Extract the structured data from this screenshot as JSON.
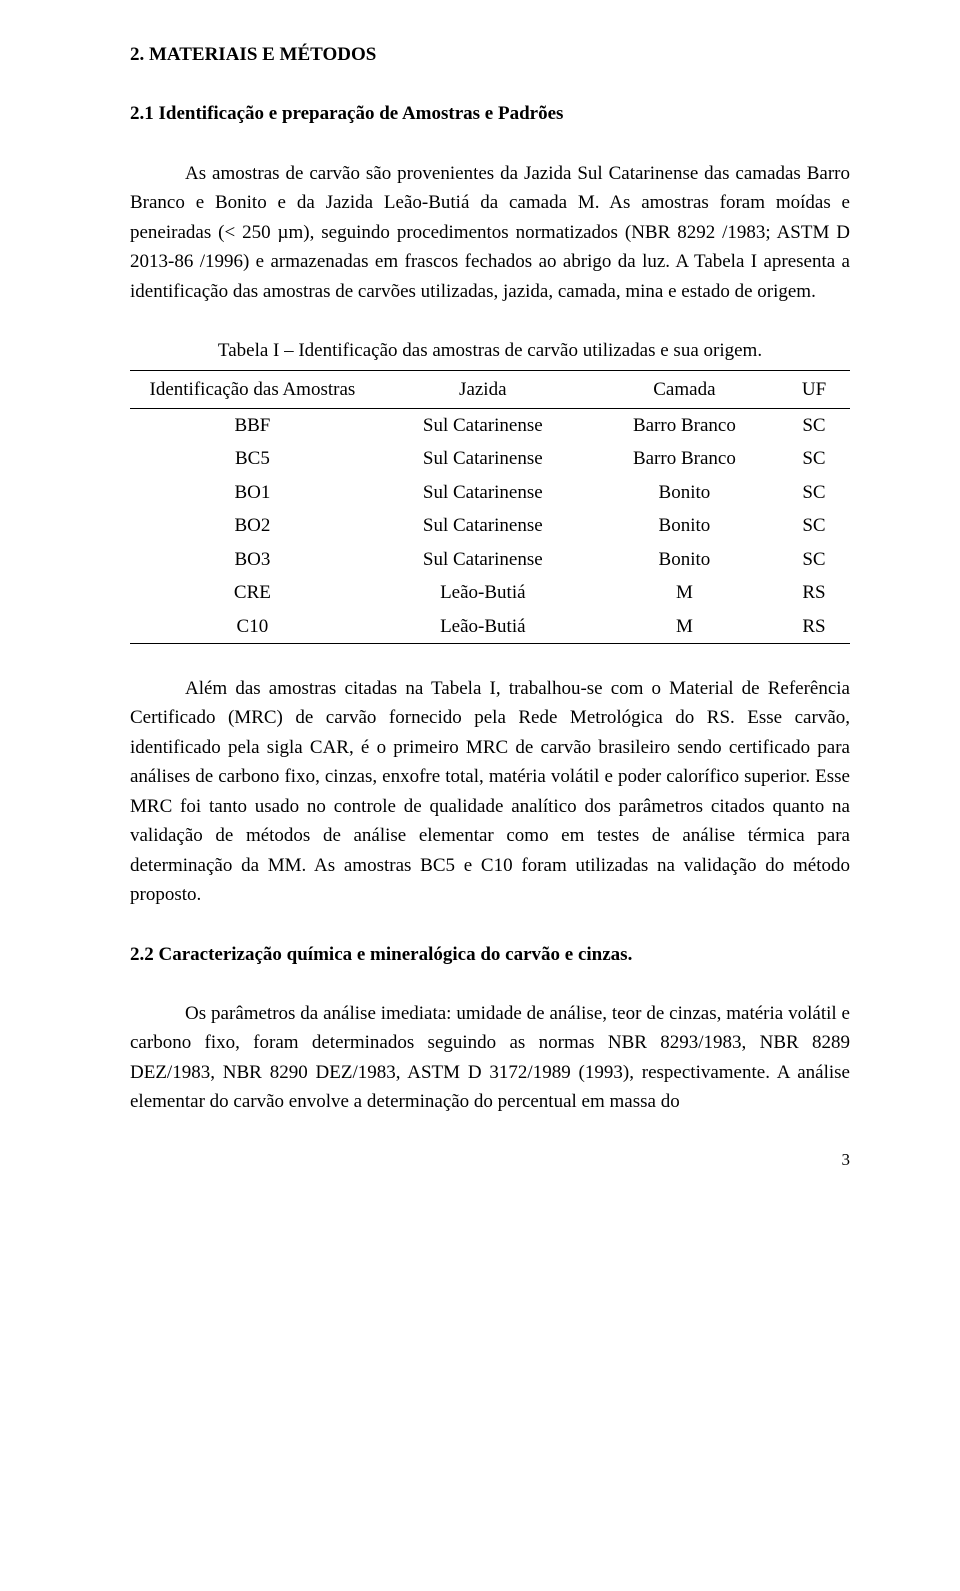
{
  "heading": "2. MATERIAIS E MÉTODOS",
  "sub1": "2.1 Identificação e preparação de Amostras e Padrões",
  "p1": "As amostras de carvão são provenientes da Jazida Sul Catarinense das camadas Barro Branco e Bonito e da Jazida Leão-Butiá da camada M. As amostras foram moídas e peneiradas (< 250 µm), seguindo procedimentos normatizados (NBR 8292 /1983; ASTM D 2013-86 /1996) e armazenadas em frascos fechados ao abrigo da luz. A Tabela I apresenta a identificação das amostras de carvões utilizadas, jazida, camada, mina e estado de origem.",
  "table_caption": "Tabela I – Identificação das amostras de carvão utilizadas e sua origem.",
  "table": {
    "columns": [
      "Identificação das Amostras",
      "Jazida",
      "Camada",
      "UF"
    ],
    "rows": [
      [
        "BBF",
        "Sul Catarinense",
        "Barro Branco",
        "SC"
      ],
      [
        "BC5",
        "Sul Catarinense",
        "Barro Branco",
        "SC"
      ],
      [
        "BO1",
        "Sul Catarinense",
        "Bonito",
        "SC"
      ],
      [
        "BO2",
        "Sul Catarinense",
        "Bonito",
        "SC"
      ],
      [
        "BO3",
        "Sul Catarinense",
        "Bonito",
        "SC"
      ],
      [
        "CRE",
        "Leão-Butiá",
        "M",
        "RS"
      ],
      [
        "C10",
        "Leão-Butiá",
        "M",
        "RS"
      ]
    ]
  },
  "p2": "Além das amostras citadas na Tabela I, trabalhou-se com o Material de Referência Certificado (MRC) de carvão fornecido pela Rede Metrológica do RS. Esse carvão, identificado pela sigla CAR, é o primeiro MRC de carvão brasileiro sendo certificado para análises de carbono fixo, cinzas, enxofre total, matéria volátil e poder calorífico superior. Esse MRC foi tanto usado no controle de qualidade analítico dos parâmetros citados quanto na validação de métodos de análise elementar como em testes de análise térmica para determinação da MM. As amostras BC5 e C10 foram utilizadas na validação do método proposto.",
  "sub2": "2.2 Caracterização química e mineralógica do carvão e cinzas.",
  "p3": "Os parâmetros da análise imediata: umidade de análise, teor de cinzas, matéria volátil e carbono fixo, foram determinados seguindo as normas NBR 8293/1983, NBR 8289 DEZ/1983, NBR 8290 DEZ/1983, ASTM D 3172/1989 (1993), respectivamente. A análise elementar do carvão envolve a determinação do percentual em massa do",
  "page_number": "3"
}
